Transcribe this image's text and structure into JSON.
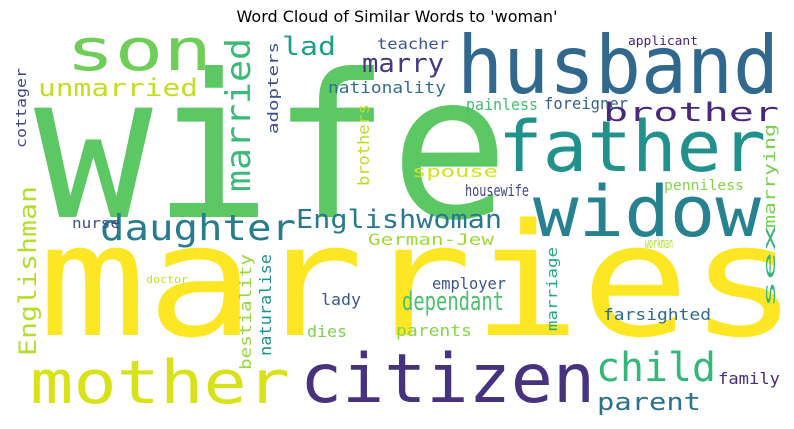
{
  "title": "Word Cloud of Similar Words to 'woman'",
  "words": [
    {
      "text": "wife",
      "color": "#5cc863"
    },
    {
      "text": "marries",
      "color": "#fde725"
    },
    {
      "text": "husband",
      "color": "#31688e"
    },
    {
      "text": "father",
      "color": "#21918c"
    },
    {
      "text": "widow",
      "color": "#26828e"
    },
    {
      "text": "citizen",
      "color": "#46327e"
    },
    {
      "text": "mother",
      "color": "#d8e219"
    },
    {
      "text": "son",
      "color": "#6ece58"
    },
    {
      "text": "daughter",
      "color": "#287c8e"
    },
    {
      "text": "child",
      "color": "#35b779"
    },
    {
      "text": "Englishwoman",
      "color": "#2a788e"
    },
    {
      "text": "unmarried",
      "color": "#c2df23"
    },
    {
      "text": "marry",
      "color": "#443983"
    },
    {
      "text": "lad",
      "color": "#1f9e89"
    },
    {
      "text": "brother",
      "color": "#482878"
    },
    {
      "text": "dependant",
      "color": "#4ac16d"
    },
    {
      "text": "parent",
      "color": "#2c728e"
    },
    {
      "text": "married",
      "color": "#3aba76"
    },
    {
      "text": "Englishman",
      "color": "#b5de2b"
    },
    {
      "text": "German-Jew",
      "color": "#a0da39"
    },
    {
      "text": "nationality",
      "color": "#2e6e8e"
    },
    {
      "text": "workman",
      "color": "#addc30"
    },
    {
      "text": "teacher",
      "color": "#39558c"
    },
    {
      "text": "painless",
      "color": "#42be71"
    },
    {
      "text": "foreigner",
      "color": "#355f8d"
    },
    {
      "text": "adopters",
      "color": "#3b528b"
    },
    {
      "text": "cottager",
      "color": "#404688"
    },
    {
      "text": "brothers",
      "color": "#b8de29"
    },
    {
      "text": "spouse",
      "color": "#d5e21a"
    },
    {
      "text": "housewife",
      "color": "#414487"
    },
    {
      "text": "penniless",
      "color": "#84d44b"
    },
    {
      "text": "marrying",
      "color": "#7ad151"
    },
    {
      "text": "sex",
      "color": "#34b679"
    },
    {
      "text": "nurse",
      "color": "#3e4c8a"
    },
    {
      "text": "employer",
      "color": "#3b528b"
    },
    {
      "text": "marriage",
      "color": "#22a884"
    },
    {
      "text": "lady",
      "color": "#38598c"
    },
    {
      "text": "farsighted",
      "color": "#2f6b8e"
    },
    {
      "text": "dies",
      "color": "#7ad151"
    },
    {
      "text": "parents",
      "color": "#89d548"
    },
    {
      "text": "family",
      "color": "#472c7a"
    },
    {
      "text": "bestiality",
      "color": "#98d83e"
    },
    {
      "text": "naturalise",
      "color": "#20928c"
    },
    {
      "text": "doctor",
      "color": "#c8e020"
    },
    {
      "text": "applicant",
      "color": "#482475"
    }
  ]
}
